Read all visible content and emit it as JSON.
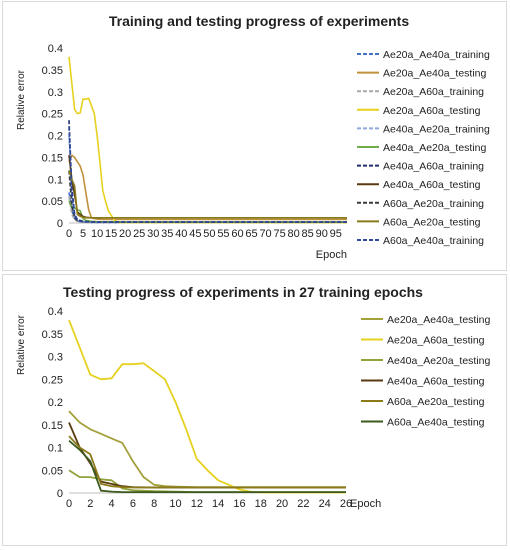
{
  "chart_data": [
    {
      "type": "line",
      "title": "Training and testing progress of experiments",
      "xlabel": "Epoch",
      "ylabel": "Relative error",
      "xlim": [
        0,
        99
      ],
      "ylim": [
        0,
        0.4
      ],
      "yticks": [
        "0",
        "0.05",
        "0.1",
        "0.15",
        "0.2",
        "0.25",
        "0.3",
        "0.35",
        "0.4"
      ],
      "xticks": [
        "0",
        "5",
        "10",
        "15",
        "20",
        "25",
        "30",
        "35",
        "40",
        "45",
        "50",
        "55",
        "60",
        "65",
        "70",
        "75",
        "80",
        "85",
        "90",
        "95"
      ],
      "grid": false,
      "legend_position": "right",
      "series": [
        {
          "name": "Ae20a_Ae40a_training",
          "color": "#4472c4",
          "dash": true,
          "x": [
            0,
            1,
            2,
            3,
            4,
            5,
            10,
            20,
            99
          ],
          "y": [
            0.07,
            0.03,
            0.01,
            0.005,
            0.003,
            0.002,
            0.001,
            0.001,
            0.001
          ]
        },
        {
          "name": "Ae20a_Ae40a_testing",
          "color": "#c0913a",
          "dash": false,
          "x": [
            0,
            1,
            2,
            3,
            4,
            5,
            6,
            7,
            8,
            9,
            10,
            12,
            15,
            20,
            99
          ],
          "y": [
            0.14,
            0.155,
            0.15,
            0.14,
            0.13,
            0.11,
            0.07,
            0.03,
            0.012,
            0.01,
            0.009,
            0.008,
            0.008,
            0.008,
            0.008
          ]
        },
        {
          "name": "Ae20a_A60a_training",
          "color": "#a9a9a9",
          "dash": true,
          "x": [
            0,
            1,
            2,
            3,
            5,
            10,
            99
          ],
          "y": [
            0.06,
            0.02,
            0.008,
            0.004,
            0.002,
            0.001,
            0.001
          ]
        },
        {
          "name": "Ae20a_A60a_testing",
          "color": "#e6d11e",
          "dash": false,
          "x": [
            0,
            1,
            2,
            3,
            4,
            5,
            6,
            7,
            8,
            9,
            10,
            11,
            12,
            13,
            14,
            15,
            16,
            17,
            18,
            20,
            26,
            99
          ],
          "y": [
            0.38,
            0.32,
            0.26,
            0.25,
            0.252,
            0.283,
            0.283,
            0.285,
            0.268,
            0.25,
            0.2,
            0.14,
            0.075,
            0.05,
            0.028,
            0.018,
            0.008,
            0.003,
            0.001,
            0.001,
            0.001,
            0.001
          ]
        },
        {
          "name": "Ae40a_Ae20a_training",
          "color": "#8ea9db",
          "dash": true,
          "x": [
            0,
            1,
            2,
            3,
            5,
            10,
            99
          ],
          "y": [
            0.2,
            0.06,
            0.015,
            0.006,
            0.003,
            0.002,
            0.002
          ]
        },
        {
          "name": "Ae40a_Ae20a_testing",
          "color": "#70ad47",
          "dash": false,
          "x": [
            0,
            1,
            2,
            3,
            4,
            5,
            6,
            8,
            10,
            20,
            99
          ],
          "y": [
            0.05,
            0.035,
            0.035,
            0.03,
            0.028,
            0.01,
            0.006,
            0.004,
            0.003,
            0.002,
            0.002
          ]
        },
        {
          "name": "Ae40a_A60a_training",
          "color": "#1f2d6b",
          "dash": true,
          "x": [
            0,
            1,
            2,
            3,
            5,
            10,
            99
          ],
          "y": [
            0.235,
            0.08,
            0.02,
            0.008,
            0.004,
            0.002,
            0.002
          ]
        },
        {
          "name": "Ae40a_A60a_testing",
          "color": "#5a3a10",
          "dash": false,
          "x": [
            0,
            1,
            2,
            3,
            4,
            5,
            6,
            8,
            10,
            20,
            99
          ],
          "y": [
            0.155,
            0.1,
            0.065,
            0.025,
            0.02,
            0.015,
            0.013,
            0.012,
            0.012,
            0.012,
            0.012
          ]
        },
        {
          "name": "A60a_Ae20a_training",
          "color": "#3a3a3a",
          "dash": true,
          "x": [
            0,
            1,
            2,
            3,
            5,
            10,
            99
          ],
          "y": [
            0.12,
            0.04,
            0.012,
            0.005,
            0.003,
            0.002,
            0.002
          ]
        },
        {
          "name": "A60a_Ae20a_testing",
          "color": "#8a7a1a",
          "dash": false,
          "x": [
            0,
            1,
            2,
            3,
            4,
            5,
            6,
            7,
            8,
            10,
            15,
            20,
            99
          ],
          "y": [
            0.12,
            0.1,
            0.085,
            0.02,
            0.015,
            0.013,
            0.012,
            0.012,
            0.012,
            0.012,
            0.012,
            0.012,
            0.012
          ]
        },
        {
          "name": "A60a_Ae40a_training",
          "color": "#2e4a9e",
          "dash": true,
          "x": [
            0,
            1,
            2,
            3,
            5,
            10,
            99
          ],
          "y": [
            0.22,
            0.07,
            0.018,
            0.006,
            0.003,
            0.002,
            0.002
          ]
        }
      ]
    },
    {
      "type": "line",
      "title": "Testing progress of experiments in 27 training epochs",
      "xlabel": "Epoch",
      "ylabel": "Relative error",
      "xlim": [
        0,
        26
      ],
      "ylim": [
        0,
        0.4
      ],
      "yticks": [
        "0",
        "0.05",
        "0.1",
        "0.15",
        "0.2",
        "0.25",
        "0.3",
        "0.35",
        "0.4"
      ],
      "xticks": [
        "0",
        "2",
        "4",
        "6",
        "8",
        "10",
        "12",
        "14",
        "16",
        "18",
        "20",
        "22",
        "24",
        "26"
      ],
      "grid": false,
      "legend_position": "right",
      "series": [
        {
          "name": "Ae20a_Ae40a_testing",
          "color": "#a3a03c",
          "dash": false,
          "x": [
            0,
            1,
            2,
            3,
            4,
            5,
            6,
            7,
            8,
            9,
            10,
            12,
            14,
            16,
            18,
            20,
            22,
            24,
            26
          ],
          "y": [
            0.18,
            0.155,
            0.14,
            0.13,
            0.12,
            0.11,
            0.07,
            0.035,
            0.018,
            0.015,
            0.014,
            0.013,
            0.013,
            0.013,
            0.013,
            0.013,
            0.013,
            0.013,
            0.013
          ]
        },
        {
          "name": "Ae20a_A60a_testing",
          "color": "#e6d11e",
          "dash": false,
          "x": [
            0,
            1,
            2,
            3,
            4,
            5,
            6,
            7,
            8,
            9,
            10,
            11,
            12,
            13,
            14,
            15,
            16,
            17,
            18,
            20,
            22,
            24,
            26
          ],
          "y": [
            0.38,
            0.32,
            0.26,
            0.25,
            0.252,
            0.283,
            0.283,
            0.285,
            0.268,
            0.25,
            0.2,
            0.14,
            0.075,
            0.05,
            0.028,
            0.018,
            0.008,
            0.003,
            0.001,
            0.001,
            0.001,
            0.001,
            0.001
          ]
        },
        {
          "name": "Ae40a_Ae20a_testing",
          "color": "#8fa33a",
          "dash": false,
          "x": [
            0,
            1,
            2,
            3,
            4,
            5,
            6,
            8,
            10,
            12,
            14,
            16,
            18,
            20,
            22,
            24,
            26
          ],
          "y": [
            0.05,
            0.035,
            0.035,
            0.03,
            0.028,
            0.01,
            0.006,
            0.004,
            0.003,
            0.002,
            0.002,
            0.002,
            0.002,
            0.002,
            0.002,
            0.002,
            0.002
          ]
        },
        {
          "name": "Ae40a_A60a_testing",
          "color": "#5a3a10",
          "dash": false,
          "x": [
            0,
            1,
            2,
            3,
            4,
            5,
            6,
            8,
            10,
            12,
            14,
            16,
            18,
            20,
            22,
            24,
            26
          ],
          "y": [
            0.155,
            0.1,
            0.065,
            0.025,
            0.02,
            0.015,
            0.013,
            0.012,
            0.012,
            0.012,
            0.012,
            0.012,
            0.012,
            0.012,
            0.012,
            0.012,
            0.012
          ]
        },
        {
          "name": "A60a_Ae20a_testing",
          "color": "#8a7a1a",
          "dash": false,
          "x": [
            0,
            1,
            2,
            3,
            4,
            5,
            6,
            8,
            10,
            12,
            14,
            16,
            18,
            20,
            22,
            24,
            26
          ],
          "y": [
            0.125,
            0.1,
            0.085,
            0.02,
            0.015,
            0.013,
            0.012,
            0.012,
            0.012,
            0.012,
            0.012,
            0.012,
            0.012,
            0.012,
            0.012,
            0.012,
            0.012
          ]
        },
        {
          "name": "A60a_Ae40a_testing",
          "color": "#3e5a1e",
          "dash": false,
          "x": [
            0,
            1,
            2,
            3,
            4,
            5,
            6,
            8,
            10,
            12,
            14,
            16,
            18,
            20,
            22,
            24,
            26
          ],
          "y": [
            0.115,
            0.095,
            0.07,
            0.005,
            0.003,
            0.002,
            0.002,
            0.002,
            0.002,
            0.002,
            0.002,
            0.002,
            0.002,
            0.002,
            0.002,
            0.002,
            0.002
          ]
        }
      ]
    }
  ]
}
